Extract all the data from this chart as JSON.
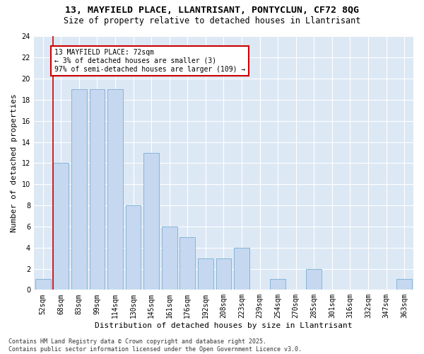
{
  "title_line1": "13, MAYFIELD PLACE, LLANTRISANT, PONTYCLUN, CF72 8QG",
  "title_line2": "Size of property relative to detached houses in Llantrisant",
  "xlabel": "Distribution of detached houses by size in Llantrisant",
  "ylabel": "Number of detached properties",
  "categories": [
    "52sqm",
    "68sqm",
    "83sqm",
    "99sqm",
    "114sqm",
    "130sqm",
    "145sqm",
    "161sqm",
    "176sqm",
    "192sqm",
    "208sqm",
    "223sqm",
    "239sqm",
    "254sqm",
    "270sqm",
    "285sqm",
    "301sqm",
    "316sqm",
    "332sqm",
    "347sqm",
    "363sqm"
  ],
  "values": [
    1,
    12,
    19,
    19,
    19,
    8,
    13,
    6,
    5,
    3,
    3,
    4,
    0,
    1,
    0,
    2,
    0,
    0,
    0,
    0,
    1
  ],
  "bar_color": "#c5d8f0",
  "bar_edge_color": "#7aadd4",
  "background_color": "#dde8f5",
  "grid_color": "#ffffff",
  "vline_color": "#cc0000",
  "vline_x_idx": 1,
  "annotation_text": "13 MAYFIELD PLACE: 72sqm\n← 3% of detached houses are smaller (3)\n97% of semi-detached houses are larger (109) →",
  "annotation_box_edgecolor": "#cc0000",
  "ylim": [
    0,
    24
  ],
  "yticks": [
    0,
    2,
    4,
    6,
    8,
    10,
    12,
    14,
    16,
    18,
    20,
    22,
    24
  ],
  "footnote": "Contains HM Land Registry data © Crown copyright and database right 2025.\nContains public sector information licensed under the Open Government Licence v3.0.",
  "title_fontsize": 9.5,
  "subtitle_fontsize": 8.5,
  "tick_fontsize": 7,
  "label_fontsize": 8,
  "annotation_fontsize": 7,
  "footnote_fontsize": 6
}
